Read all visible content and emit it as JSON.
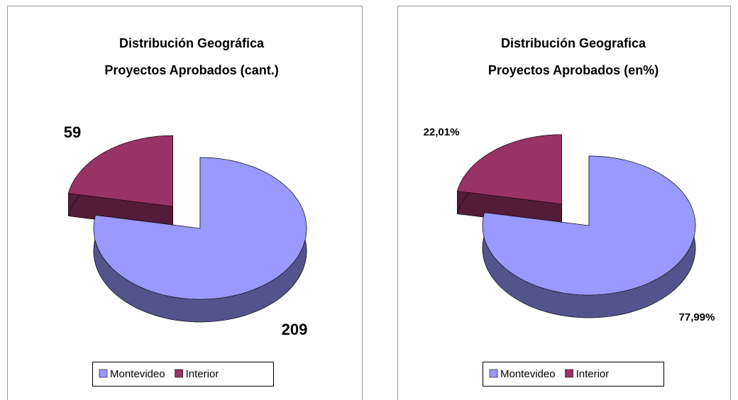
{
  "chart_data": [
    {
      "type": "pie",
      "title": "Distribución Geográfica",
      "subtitle": "Proyectos Aprobados (cant.)",
      "categories": [
        "Montevideo",
        "Interior"
      ],
      "values": [
        209,
        59
      ],
      "colors": [
        "#9999ff",
        "#993366"
      ]
    },
    {
      "type": "pie",
      "title": "Distribución Geografica",
      "subtitle": "Proyectos Aprobados (en%)",
      "categories": [
        "Montevideo",
        "Interior"
      ],
      "values": [
        77.99,
        22.01
      ],
      "value_labels": [
        "77,99%",
        "22,01%"
      ],
      "colors": [
        "#9999ff",
        "#993366"
      ]
    }
  ]
}
